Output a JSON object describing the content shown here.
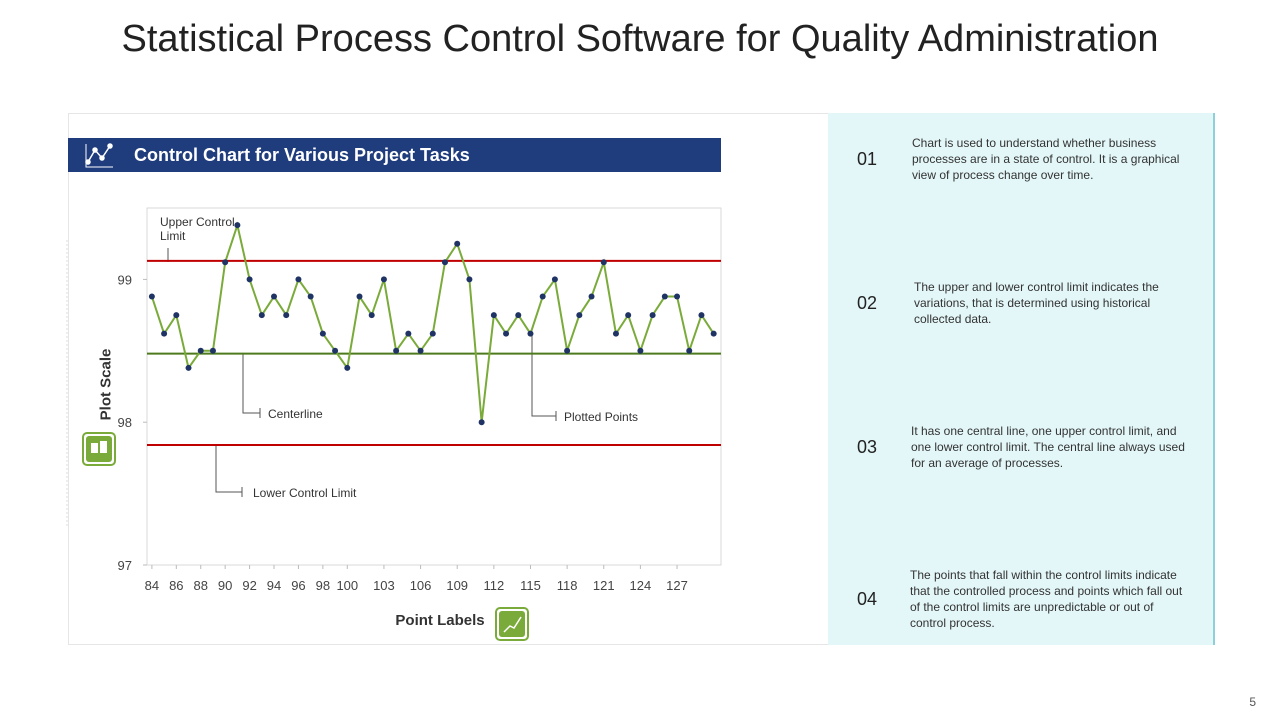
{
  "title": "Statistical Process Control Software for Quality Administration",
  "chart_data": {
    "type": "line",
    "title": "Control Chart for Various Project Tasks",
    "y_label": "Plot Scale",
    "x_label": "Point Labels",
    "x": [
      84,
      85,
      86,
      87,
      88,
      89,
      90,
      91,
      92,
      93,
      94,
      95,
      96,
      97,
      98,
      99,
      100,
      101,
      102,
      103,
      104,
      105,
      106,
      107,
      108,
      109,
      110,
      111,
      112,
      113,
      114,
      115,
      116,
      117,
      118,
      119,
      120,
      121,
      122,
      123,
      124,
      125,
      126,
      127,
      128,
      129,
      130
    ],
    "series": [
      {
        "name": "Plotted Points",
        "color": "#7aab3a",
        "marker_color": "#1f3464",
        "values": [
          98.88,
          98.62,
          98.75,
          98.38,
          98.5,
          98.5,
          99.12,
          99.38,
          99.0,
          98.75,
          98.88,
          98.75,
          99.0,
          98.88,
          98.62,
          98.5,
          98.38,
          98.88,
          98.75,
          99.0,
          98.5,
          98.62,
          98.5,
          98.62,
          99.12,
          99.25,
          99.0,
          98.0,
          98.75,
          98.62,
          98.75,
          98.62,
          98.88,
          99.0,
          98.5,
          98.75,
          98.88,
          99.12,
          98.62,
          98.75,
          98.5,
          98.75,
          98.88,
          98.88,
          98.5,
          98.75,
          98.62
        ]
      }
    ],
    "reference_lines": [
      {
        "label": "Upper Control Limit",
        "value": 99.13,
        "color": "#c00000"
      },
      {
        "label": "Centerline",
        "value": 98.48,
        "color": "#4e7a1e"
      },
      {
        "label": "Lower Control Limit",
        "value": 97.84,
        "color": "#c00000"
      }
    ],
    "xlim": [
      83.6,
      130.6
    ],
    "xticks": [
      84,
      86,
      88,
      90,
      92,
      94,
      96,
      98,
      100,
      103,
      106,
      109,
      112,
      115,
      118,
      121,
      124,
      127
    ],
    "ylim": [
      97,
      99.5
    ],
    "yticks": [
      97,
      98,
      99
    ]
  },
  "notes": [
    {
      "number": "01",
      "text": "Chart is used to understand whether business processes are in a state of control. It is a graphical view of process change over time."
    },
    {
      "number": "02",
      "text": "The upper and lower control limit indicates the variations, that is determined using historical collected data."
    },
    {
      "number": "03",
      "text": "It has one central line, one upper control limit, and one lower control limit. The central line always used for an average of processes."
    },
    {
      "number": "04",
      "text": "The points that fall within the control limits indicate that the controlled process and points which fall out of the control limits are unpredictable or out of control process."
    }
  ],
  "page_number": "5"
}
